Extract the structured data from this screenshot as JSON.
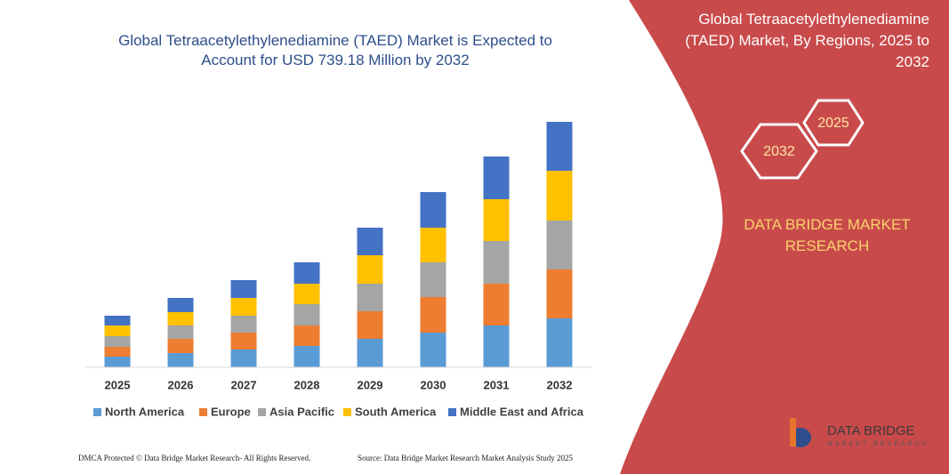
{
  "chart_data": {
    "type": "bar",
    "stacked": true,
    "title": "Global Tetraacetylethylenediamine (TAED) Market is Expected to Account for USD 739.18 Million by 2032",
    "categories": [
      "2025",
      "2026",
      "2027",
      "2028",
      "2029",
      "2030",
      "2031",
      "2032"
    ],
    "series": [
      {
        "name": "North America",
        "color": "#5b9bd5",
        "values": [
          12,
          16,
          20,
          24,
          32,
          39,
          47,
          55
        ]
      },
      {
        "name": "Europe",
        "color": "#ed7d31",
        "values": [
          11,
          16,
          19,
          23,
          31,
          40,
          47,
          55
        ]
      },
      {
        "name": "Asia Pacific",
        "color": "#a5a5a5",
        "values": [
          12,
          15,
          19,
          24,
          31,
          39,
          48,
          55
        ]
      },
      {
        "name": "South America",
        "color": "#ffc000",
        "values": [
          12,
          15,
          20,
          23,
          32,
          39,
          47,
          56
        ]
      },
      {
        "name": "Middle East and Africa",
        "color": "#4472c4",
        "values": [
          11,
          16,
          20,
          24,
          31,
          40,
          48,
          55
        ]
      }
    ],
    "ylim": [
      0,
      276
    ],
    "grid": false,
    "legend": "bottom"
  },
  "side_panel": {
    "title": "Global Tetraacetylethylenediamine (TAED) Market, By Regions, 2025 to 2032",
    "hexagons": [
      "2025",
      "2032"
    ],
    "brand": "DATA BRIDGE MARKET RESEARCH",
    "logo": {
      "name": "DATA BRIDGE",
      "tagline": "MARKET RESEARCH"
    }
  },
  "footer": {
    "left": "DMCA Protected © Data Bridge Market Research- All Rights Reserved.",
    "right": "Source: Data Bridge Market Research Market Analysis Study 2025"
  }
}
